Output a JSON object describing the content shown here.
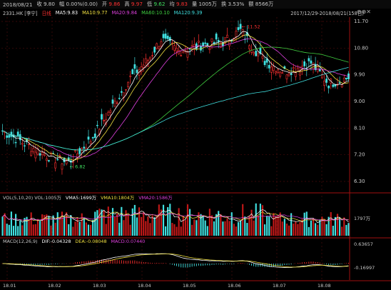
{
  "header": {
    "date": "2018/08/21",
    "close_label": "收",
    "close": "9.80",
    "chg_label": "幅",
    "chg": "0.00%(0.00)",
    "open_label": "开",
    "open": "9.86",
    "high_label": "高",
    "high": "9.97",
    "low_label": "低",
    "low": "9.62",
    "avg_label": "均",
    "avg": "9.83",
    "vol_label": "量",
    "vol": "1005万",
    "turn_label": "换",
    "turn": "3.53%",
    "amt_label": "额",
    "amt": "8566万"
  },
  "info": {
    "symbol": "2331.HK [李宁]",
    "period": "日线",
    "ma5": "MA5:9.83",
    "ma10": "MA10:9.77",
    "ma20": "MA20:9.84",
    "ma60": "MA60:10.10",
    "ma120": "MA120:9.39",
    "range": "2017/12/29-2018/08/21(158日)"
  },
  "colors": {
    "up": "#ff3030",
    "down": "#40e0e0",
    "ma5": "#ffffff",
    "ma10": "#f0e040",
    "ma20": "#e040e0",
    "ma60": "#40d040",
    "ma120": "#40e0e0",
    "grid": "#4a0a0a",
    "axis": "#a01010"
  },
  "price_axis": [
    "11.70",
    "10.80",
    "9.90",
    "9.00",
    "8.10",
    "7.20",
    "6.30"
  ],
  "annotations": {
    "high": "11.52",
    "low": "6.82"
  },
  "volume": {
    "legend": "VOL(5,10,20) VOL:1005万",
    "vma5": "VMA5:1699万",
    "vma10": "VMA10:1804万",
    "vma20": "VMA20:1586万",
    "axis_label": "1797万"
  },
  "macd": {
    "legend": "MACD(12,26,9)",
    "dif": "DIF:-0.04328",
    "dea": "DEA:-0.08048",
    "macd": "MACD:0.07440",
    "axis_top": "0.63657",
    "axis_mid": "-0.16997"
  },
  "x_axis": [
    "18.01",
    "18.02",
    "18.03",
    "18.04",
    "18.05",
    "18.06",
    "18.07",
    "18.08"
  ]
}
